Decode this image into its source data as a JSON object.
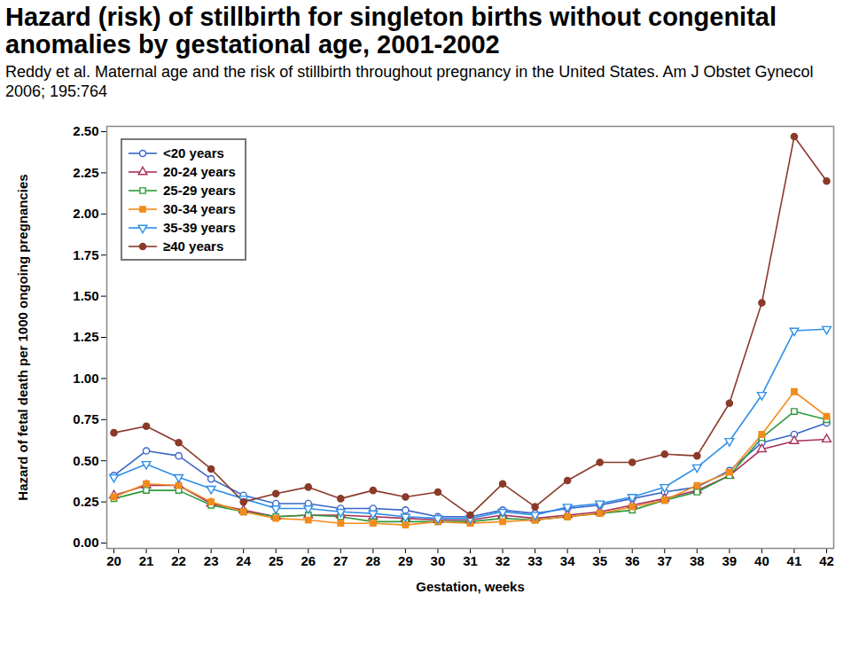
{
  "chart_data": {
    "type": "line",
    "title": "Hazard (risk) of stillbirth for singleton births without congenital anomalies by gestational age, 2001-2002",
    "subtitle": "Reddy et al. Maternal age and the risk of stillbirth throughout pregnancy in the United States. Am J Obstet Gynecol 2006; 195:764",
    "x_label": "Gestation, weeks",
    "y_label": "Hazard of fetal death per 1000 ongoing pregnancies",
    "x": [
      20,
      21,
      22,
      23,
      24,
      25,
      26,
      27,
      28,
      29,
      30,
      31,
      32,
      33,
      34,
      35,
      36,
      37,
      38,
      39,
      40,
      41,
      42
    ],
    "series": [
      {
        "name": "<20 years",
        "color": "#3a66c8",
        "marker": "circle-open",
        "values": [
          0.41,
          0.56,
          0.53,
          0.39,
          0.29,
          0.24,
          0.24,
          0.21,
          0.21,
          0.2,
          0.16,
          0.16,
          0.2,
          0.18,
          0.21,
          0.23,
          0.27,
          0.31,
          0.34,
          0.44,
          0.61,
          0.66,
          0.73
        ]
      },
      {
        "name": "20-24 years",
        "color": "#a8305c",
        "marker": "triangle-open",
        "values": [
          0.29,
          0.35,
          0.35,
          0.24,
          0.2,
          0.16,
          0.17,
          0.17,
          0.16,
          0.15,
          0.14,
          0.14,
          0.17,
          0.15,
          0.17,
          0.19,
          0.23,
          0.27,
          0.32,
          0.41,
          0.57,
          0.62,
          0.63
        ]
      },
      {
        "name": "25-29 years",
        "color": "#2e9a3a",
        "marker": "square-open",
        "values": [
          0.27,
          0.32,
          0.32,
          0.23,
          0.19,
          0.16,
          0.17,
          0.16,
          0.13,
          0.13,
          0.13,
          0.13,
          0.15,
          0.14,
          0.16,
          0.18,
          0.2,
          0.26,
          0.31,
          0.41,
          0.64,
          0.8,
          0.75
        ]
      },
      {
        "name": "30-34 years",
        "color": "#f28c1c",
        "marker": "square",
        "values": [
          0.28,
          0.36,
          0.35,
          0.25,
          0.19,
          0.15,
          0.14,
          0.12,
          0.12,
          0.11,
          0.13,
          0.12,
          0.13,
          0.14,
          0.16,
          0.18,
          0.22,
          0.26,
          0.35,
          0.43,
          0.66,
          0.92,
          0.77
        ]
      },
      {
        "name": "35-39 years",
        "color": "#2f8fe8",
        "marker": "triangle-down-open",
        "values": [
          0.4,
          0.48,
          0.4,
          0.33,
          0.27,
          0.21,
          0.21,
          0.19,
          0.18,
          0.16,
          0.15,
          0.15,
          0.19,
          0.17,
          0.22,
          0.24,
          0.28,
          0.34,
          0.46,
          0.62,
          0.9,
          1.29,
          1.3
        ]
      },
      {
        "name": "≥40 years",
        "color": "#8b3a2a",
        "marker": "circle",
        "values": [
          0.67,
          0.71,
          0.61,
          0.45,
          0.25,
          0.3,
          0.34,
          0.27,
          0.32,
          0.28,
          0.31,
          0.17,
          0.36,
          0.22,
          0.38,
          0.49,
          0.49,
          0.54,
          0.53,
          0.85,
          1.46,
          2.47,
          2.2
        ]
      }
    ],
    "xlim": [
      20,
      42
    ],
    "xticks": [
      20,
      21,
      22,
      23,
      24,
      25,
      26,
      27,
      28,
      29,
      30,
      31,
      32,
      33,
      34,
      35,
      36,
      37,
      38,
      39,
      40,
      41,
      42
    ],
    "ylim": [
      0,
      2.5
    ],
    "yticks": [
      {
        "value": 0,
        "label": "0.00"
      },
      0.25,
      {
        "value": 0.5,
        "label": "0.50"
      },
      0.75,
      {
        "value": 1,
        "label": "1.00"
      },
      1.25,
      {
        "value": 1.5,
        "label": "1.50"
      },
      1.75,
      {
        "value": 2,
        "label": "2.00"
      },
      2.25,
      {
        "value": 2.5,
        "label": "2.50"
      }
    ],
    "grid": false,
    "legend": "top-left"
  }
}
